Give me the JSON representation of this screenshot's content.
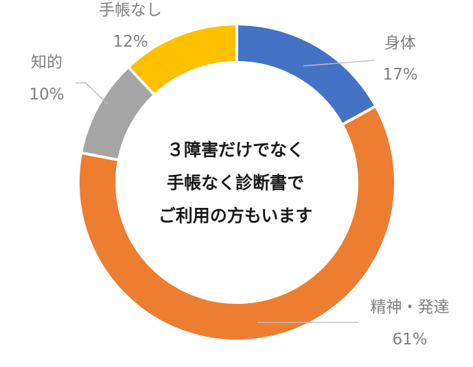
{
  "chart_data": {
    "type": "pie",
    "subtype": "donut",
    "categories": [
      "身体",
      "精神・発達",
      "知的",
      "手帳なし"
    ],
    "values": [
      17,
      61,
      10,
      12
    ],
    "unit": "%",
    "colors": [
      "#4472C4",
      "#ED7D31",
      "#A5A5A5",
      "#FFC000"
    ],
    "value_labels": [
      "17%",
      "61%",
      "10%",
      "12%"
    ],
    "center_text": [
      "３障害だけでなく",
      "手帳なく診断書で",
      "ご利用の方もいます"
    ],
    "legend": "none"
  }
}
